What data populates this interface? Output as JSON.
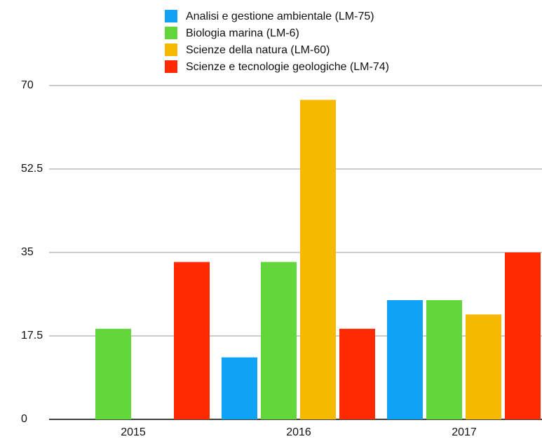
{
  "chart_data": {
    "type": "bar",
    "categories": [
      "2015",
      "2016",
      "2017"
    ],
    "series": [
      {
        "name": "Analisi e gestione ambientale (LM-75)",
        "color": "#0fa2f5",
        "values": [
          null,
          13,
          25
        ]
      },
      {
        "name": "Biologia marina (LM-6)",
        "color": "#62d63b",
        "values": [
          19,
          33,
          25
        ]
      },
      {
        "name": "Scienze della natura (LM-60)",
        "color": "#f7b900",
        "values": [
          null,
          67,
          22
        ]
      },
      {
        "name": "Scienze e tecnologie geologiche (LM-74)",
        "color": "#ff2a00",
        "values": [
          33,
          19,
          35
        ]
      }
    ],
    "ylim": [
      0,
      70
    ],
    "yticks": [
      0,
      17.5,
      35,
      52.5,
      70
    ],
    "grid": true,
    "legend": "top"
  }
}
